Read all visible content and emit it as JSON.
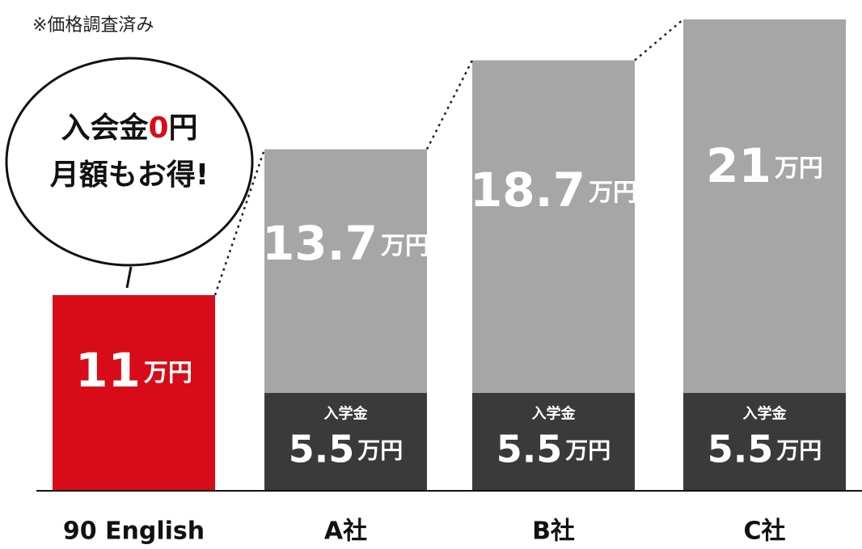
{
  "chart_data": {
    "type": "stacked-bar",
    "note": "※価格調査済み",
    "callout": {
      "line1": [
        "入会金",
        "0",
        "円"
      ],
      "line2": "月額もお得!"
    },
    "unit": "万円",
    "categories": [
      "90 English",
      "A社",
      "B社",
      "C社"
    ],
    "series": [
      {
        "name": "入学金",
        "color": "#3a3a3a",
        "values": [
          null,
          5.5,
          5.5,
          5.5
        ]
      },
      {
        "colors": [
          "#d70c18",
          "#a6a6a6",
          "#a6a6a6",
          "#a6a6a6"
        ],
        "values": [
          11,
          13.7,
          18.7,
          21
        ]
      }
    ]
  }
}
